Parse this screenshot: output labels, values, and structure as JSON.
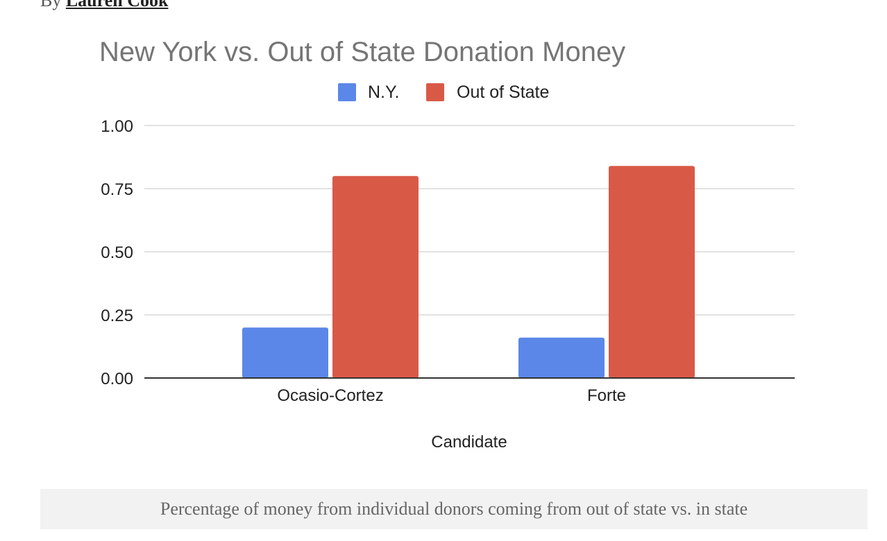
{
  "byline": {
    "prefix": "By",
    "author": "Lauren Cook"
  },
  "colors": {
    "ny": "#5b87e8",
    "out_of_state": "#d95947",
    "title": "#757575",
    "grid": "#d9d9d9",
    "axis": "#333333"
  },
  "chart_data": {
    "type": "bar",
    "title": "New York vs. Out of State Donation Money",
    "xlabel": "Candidate",
    "ylabel": "",
    "categories": [
      "Ocasio-Cortez",
      "Forte"
    ],
    "series": [
      {
        "name": "N.Y.",
        "values": [
          0.2,
          0.16
        ]
      },
      {
        "name": "Out of State",
        "values": [
          0.8,
          0.84
        ]
      }
    ],
    "ylim": [
      0,
      1
    ],
    "yticks": [
      "0.00",
      "0.25",
      "0.50",
      "0.75",
      "1.00"
    ],
    "grid": true,
    "legend_position": "top"
  },
  "caption": "Percentage of money from individual donors coming from out of state vs. in state"
}
